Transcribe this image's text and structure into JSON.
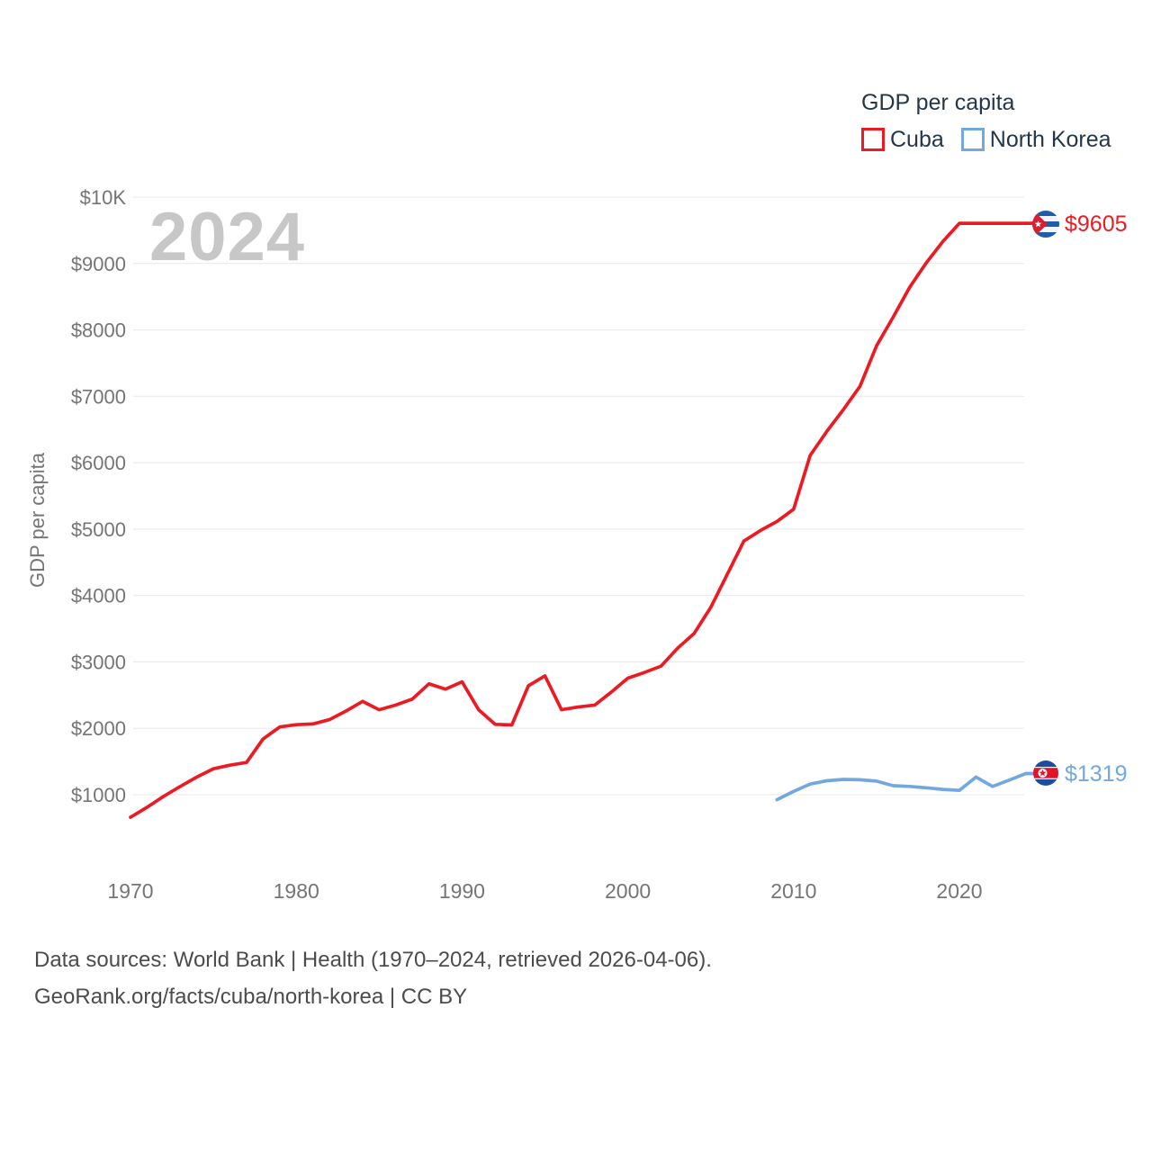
{
  "watermark": "2024",
  "y_axis_title": "GDP per capita",
  "legend": {
    "title": "GDP per capita",
    "items": [
      {
        "label": "Cuba",
        "color": "#ec1b23"
      },
      {
        "label": "North Korea",
        "color": "#72a8de"
      }
    ]
  },
  "end_labels": {
    "cuba": "$9605",
    "north_korea": "$1319"
  },
  "footer": {
    "line1": "Data sources: World Bank | Health (1970–2024, retrieved 2026-04-06).",
    "line2": "GeoRank.org/facts/cuba/north-korea | CC BY"
  },
  "chart_data": {
    "type": "line",
    "title": "GDP per capita",
    "ylabel": "GDP per capita",
    "grid": "horizontal",
    "legend_position": "top-right",
    "x_range": [
      1970,
      2024
    ],
    "ylim": [
      0,
      10000
    ],
    "y_ticks": [
      {
        "label": "$10K",
        "value": 10000
      },
      {
        "label": "$9000",
        "value": 9000
      },
      {
        "label": "$8000",
        "value": 8000
      },
      {
        "label": "$7000",
        "value": 7000
      },
      {
        "label": "$6000",
        "value": 6000
      },
      {
        "label": "$5000",
        "value": 5000
      },
      {
        "label": "$4000",
        "value": 4000
      },
      {
        "label": "$3000",
        "value": 3000
      },
      {
        "label": "$2000",
        "value": 2000
      },
      {
        "label": "$1000",
        "value": 1000
      }
    ],
    "x_ticks": [
      1970,
      1980,
      1990,
      2000,
      2010,
      2020
    ],
    "series": [
      {
        "name": "Cuba",
        "color": "#ec1b23",
        "end_label": "$9605",
        "x_start": 1970,
        "values": [
          660,
          810,
          975,
          1125,
          1265,
          1390,
          1445,
          1485,
          1840,
          2020,
          2055,
          2065,
          2130,
          2260,
          2405,
          2280,
          2350,
          2440,
          2670,
          2590,
          2700,
          2280,
          2060,
          2050,
          2640,
          2790,
          2280,
          2320,
          2350,
          2545,
          2755,
          2840,
          2935,
          3205,
          3430,
          3820,
          4320,
          4820,
          4980,
          5115,
          5300,
          6110,
          6470,
          6800,
          7150,
          7760,
          8190,
          8640,
          9010,
          9330,
          9605,
          9605,
          9605,
          9605,
          9605
        ]
      },
      {
        "name": "North Korea",
        "color": "#72a8de",
        "end_label": "$1319",
        "x_start": 2009,
        "values": [
          925,
          1050,
          1160,
          1210,
          1230,
          1225,
          1205,
          1135,
          1125,
          1105,
          1080,
          1065,
          1265,
          1125,
          1220,
          1319
        ]
      }
    ]
  }
}
